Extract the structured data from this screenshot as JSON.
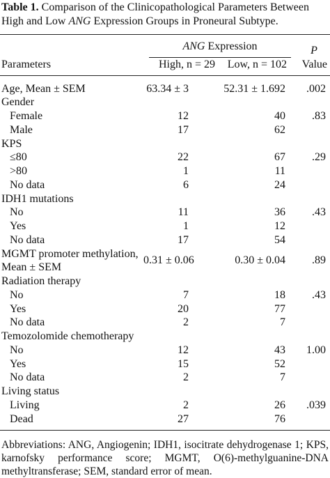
{
  "caption": {
    "label": "Table 1.",
    "text": [
      "Comparison of the Clinicopathological Parameters Between High and Low ",
      "ANG",
      " Expression Groups in Proneural Subtype."
    ]
  },
  "table": {
    "header": {
      "group": [
        "ANG",
        " Expression"
      ],
      "parameters": "Parameters",
      "high": "High, n = 29",
      "low": "Low, n = 102",
      "p": [
        "P",
        "Value"
      ]
    },
    "body": [
      {
        "cells": [
          "Age, Mean ± SEM",
          "63.34 ± 3",
          "52.31 ± 1.692",
          ".002"
        ]
      },
      {
        "group": "Gender",
        "rows": [
          [
            "Female",
            "12",
            "40",
            ".83"
          ],
          [
            "Male",
            "17",
            "62"
          ]
        ]
      },
      {
        "group": "KPS",
        "rows": [
          [
            "≤80",
            "22",
            "67",
            ".29"
          ],
          [
            ">80",
            "1",
            "11"
          ],
          [
            "No data",
            "6",
            "24"
          ]
        ]
      },
      {
        "group": "IDH1 mutations",
        "rows": [
          [
            "No",
            "11",
            "36",
            ".43"
          ],
          [
            "Yes",
            "1",
            "12"
          ],
          [
            "No data",
            "17",
            "54"
          ]
        ]
      },
      {
        "cells": [
          "MGMT promoter methylation, Mean ± SEM",
          "0.31 ± 0.06",
          "0.30 ± 0.04",
          ".89"
        ]
      },
      {
        "group": "Radiation therapy",
        "rows": [
          [
            "No",
            "7",
            "18",
            ".43"
          ],
          [
            "Yes",
            "20",
            "77"
          ],
          [
            "No data",
            "2",
            "7"
          ]
        ]
      },
      {
        "group": "Temozolomide chemotherapy",
        "rows": [
          [
            "No",
            "12",
            "43",
            "1.00"
          ],
          [
            "Yes",
            "15",
            "52"
          ],
          [
            "No data",
            "2",
            "7"
          ]
        ]
      },
      {
        "group": "Living status",
        "rows": [
          [
            "Living",
            "2",
            "26",
            ".039"
          ],
          [
            "Dead",
            "27",
            "76"
          ]
        ]
      }
    ]
  },
  "footnote": "Abbreviations: ANG, Angiogenin; IDH1, isocitrate dehydrogenase 1; KPS, karnofsky performance score; MGMT, O(6)-methylguanine-DNA methyltransferase; SEM, standard error of mean."
}
